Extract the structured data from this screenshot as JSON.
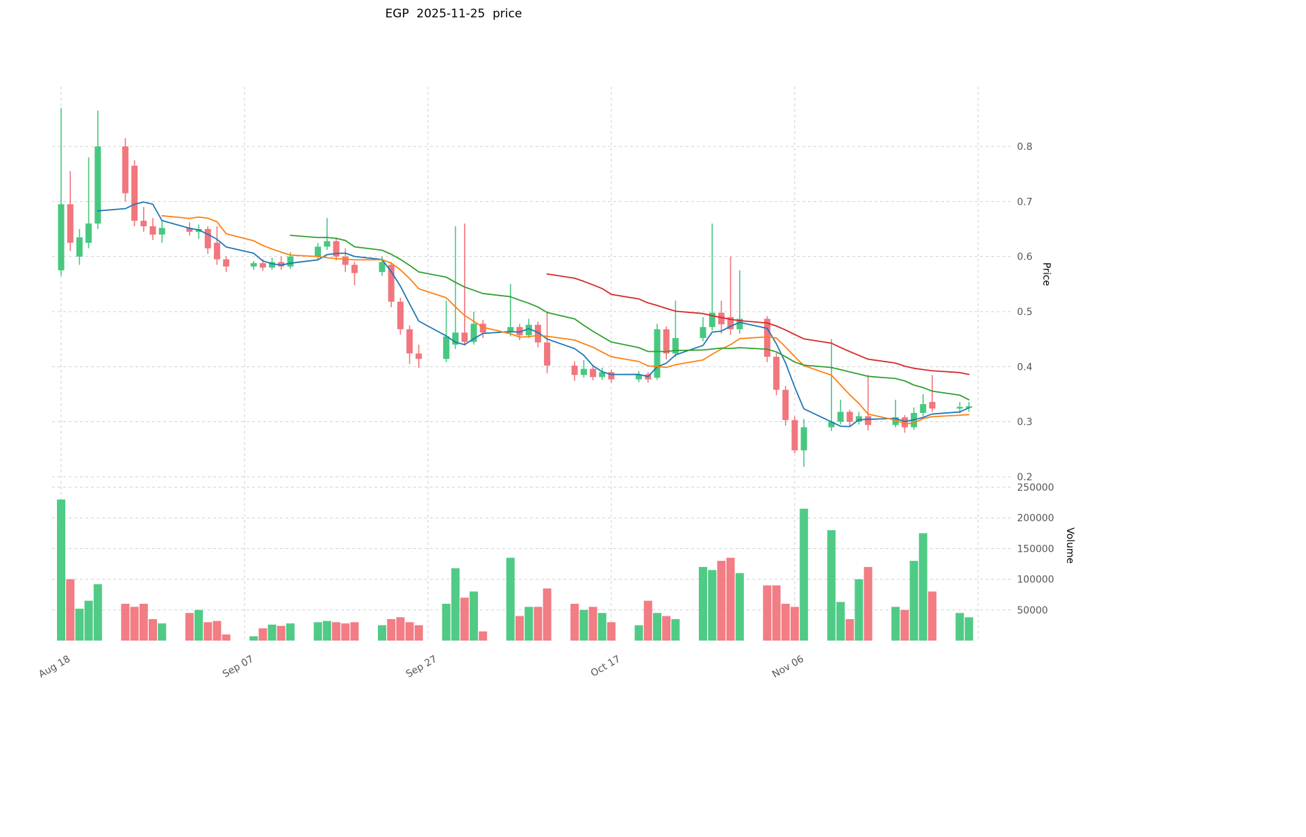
{
  "chart_data": {
    "type": "candlestick",
    "title": "EGP  2025-11-25  price",
    "price_axis_label": "Price",
    "volume_axis_label": "Volume",
    "legend_position": "none",
    "grid": "dashed",
    "price_ticks": [
      0.2,
      0.3,
      0.4,
      0.5,
      0.6,
      0.7,
      0.8
    ],
    "volume_ticks": [
      50000,
      100000,
      150000,
      200000,
      250000
    ],
    "price_ylim": [
      0.16,
      0.9
    ],
    "volume_ylim": [
      0,
      255000
    ],
    "x_ticks": [
      {
        "day": 0,
        "label": "Aug 18"
      },
      {
        "day": 20,
        "label": "Sep 07"
      },
      {
        "day": 40,
        "label": "Sep 27"
      },
      {
        "day": 60,
        "label": "Oct 17"
      },
      {
        "day": 80,
        "label": "Nov 06"
      },
      {
        "day": 100,
        "label": ""
      }
    ],
    "colors": {
      "up": "#47c87f",
      "down": "#f1767d",
      "ma5": "#1f77b4",
      "ma10": "#ff7f0e",
      "ma20": "#2ca02c",
      "ma40": "#d62728",
      "grid": "#cfcfcf",
      "tick_text": "#555555"
    },
    "moving_averages": [
      {
        "name": "MA5",
        "window": 5,
        "color_key": "ma5"
      },
      {
        "name": "MA10",
        "window": 10,
        "color_key": "ma10"
      },
      {
        "name": "MA20",
        "window": 20,
        "color_key": "ma20"
      },
      {
        "name": "MA40",
        "window": 40,
        "color_key": "ma40"
      }
    ],
    "bars_format": [
      "day_offset",
      "open",
      "high",
      "low",
      "close",
      "volume"
    ],
    "bars": [
      [
        0,
        0.575,
        0.87,
        0.565,
        0.695,
        230000
      ],
      [
        1,
        0.695,
        0.755,
        0.61,
        0.625,
        100000
      ],
      [
        2,
        0.6,
        0.65,
        0.585,
        0.635,
        52000
      ],
      [
        3,
        0.625,
        0.78,
        0.615,
        0.66,
        65000
      ],
      [
        4,
        0.66,
        0.865,
        0.65,
        0.8,
        92000
      ],
      [
        7,
        0.8,
        0.815,
        0.7,
        0.715,
        60000
      ],
      [
        8,
        0.765,
        0.775,
        0.655,
        0.665,
        55000
      ],
      [
        9,
        0.665,
        0.69,
        0.645,
        0.655,
        60000
      ],
      [
        10,
        0.655,
        0.67,
        0.63,
        0.64,
        35000
      ],
      [
        11,
        0.64,
        0.665,
        0.625,
        0.652,
        28000
      ],
      [
        14,
        0.652,
        0.662,
        0.638,
        0.645,
        45000
      ],
      [
        15,
        0.645,
        0.658,
        0.632,
        0.65,
        50000
      ],
      [
        16,
        0.65,
        0.655,
        0.605,
        0.615,
        30000
      ],
      [
        17,
        0.625,
        0.655,
        0.585,
        0.595,
        32000
      ],
      [
        18,
        0.595,
        0.6,
        0.572,
        0.582,
        10000
      ],
      [
        21,
        0.582,
        0.592,
        0.576,
        0.588,
        7000
      ],
      [
        22,
        0.588,
        0.595,
        0.574,
        0.58,
        20000
      ],
      [
        23,
        0.58,
        0.598,
        0.576,
        0.59,
        26000
      ],
      [
        24,
        0.59,
        0.6,
        0.576,
        0.582,
        24000
      ],
      [
        25,
        0.582,
        0.608,
        0.578,
        0.6,
        28000
      ],
      [
        28,
        0.6,
        0.625,
        0.595,
        0.618,
        30000
      ],
      [
        29,
        0.618,
        0.67,
        0.612,
        0.628,
        32000
      ],
      [
        30,
        0.628,
        0.635,
        0.593,
        0.6,
        30000
      ],
      [
        31,
        0.6,
        0.615,
        0.572,
        0.585,
        28000
      ],
      [
        32,
        0.585,
        0.59,
        0.548,
        0.57,
        30000
      ],
      [
        35,
        0.572,
        0.6,
        0.565,
        0.59,
        25000
      ],
      [
        36,
        0.585,
        0.59,
        0.508,
        0.518,
        35000
      ],
      [
        37,
        0.518,
        0.525,
        0.458,
        0.468,
        38000
      ],
      [
        38,
        0.468,
        0.475,
        0.405,
        0.424,
        30000
      ],
      [
        39,
        0.424,
        0.44,
        0.398,
        0.414,
        25000
      ],
      [
        42,
        0.414,
        0.52,
        0.408,
        0.455,
        60000
      ],
      [
        43,
        0.44,
        0.655,
        0.432,
        0.462,
        118000
      ],
      [
        44,
        0.462,
        0.66,
        0.438,
        0.445,
        70000
      ],
      [
        45,
        0.445,
        0.5,
        0.44,
        0.478,
        80000
      ],
      [
        46,
        0.478,
        0.485,
        0.452,
        0.462,
        15000
      ],
      [
        49,
        0.462,
        0.55,
        0.455,
        0.472,
        135000
      ],
      [
        50,
        0.472,
        0.478,
        0.448,
        0.457,
        40000
      ],
      [
        51,
        0.457,
        0.487,
        0.452,
        0.476,
        55000
      ],
      [
        52,
        0.476,
        0.482,
        0.435,
        0.444,
        55000
      ],
      [
        53,
        0.444,
        0.5,
        0.388,
        0.402,
        85000
      ],
      [
        56,
        0.402,
        0.41,
        0.374,
        0.385,
        60000
      ],
      [
        57,
        0.385,
        0.412,
        0.38,
        0.396,
        50000
      ],
      [
        58,
        0.396,
        0.402,
        0.375,
        0.381,
        55000
      ],
      [
        59,
        0.381,
        0.398,
        0.376,
        0.39,
        45000
      ],
      [
        60,
        0.39,
        0.395,
        0.371,
        0.377,
        30000
      ],
      [
        63,
        0.377,
        0.392,
        0.372,
        0.386,
        25000
      ],
      [
        64,
        0.386,
        0.39,
        0.371,
        0.377,
        65000
      ],
      [
        65,
        0.38,
        0.478,
        0.376,
        0.468,
        45000
      ],
      [
        66,
        0.468,
        0.473,
        0.413,
        0.424,
        40000
      ],
      [
        67,
        0.424,
        0.52,
        0.418,
        0.452,
        35000
      ],
      [
        70,
        0.452,
        0.49,
        0.446,
        0.472,
        120000
      ],
      [
        71,
        0.472,
        0.66,
        0.466,
        0.498,
        115000
      ],
      [
        72,
        0.498,
        0.52,
        0.46,
        0.477,
        130000
      ],
      [
        73,
        0.49,
        0.6,
        0.458,
        0.468,
        135000
      ],
      [
        74,
        0.468,
        0.575,
        0.46,
        0.487,
        110000
      ],
      [
        77,
        0.487,
        0.492,
        0.408,
        0.418,
        90000
      ],
      [
        78,
        0.418,
        0.425,
        0.348,
        0.358,
        90000
      ],
      [
        79,
        0.358,
        0.365,
        0.293,
        0.303,
        60000
      ],
      [
        80,
        0.303,
        0.31,
        0.243,
        0.248,
        55000
      ],
      [
        81,
        0.248,
        0.305,
        0.218,
        0.29,
        215000
      ],
      [
        84,
        0.29,
        0.45,
        0.283,
        0.3,
        180000
      ],
      [
        85,
        0.3,
        0.34,
        0.295,
        0.318,
        63000
      ],
      [
        86,
        0.318,
        0.322,
        0.292,
        0.3,
        35000
      ],
      [
        87,
        0.3,
        0.318,
        0.295,
        0.31,
        100000
      ],
      [
        88,
        0.31,
        0.385,
        0.284,
        0.294,
        120000
      ],
      [
        91,
        0.294,
        0.34,
        0.29,
        0.308,
        55000
      ],
      [
        92,
        0.308,
        0.312,
        0.28,
        0.29,
        50000
      ],
      [
        93,
        0.29,
        0.326,
        0.285,
        0.316,
        130000
      ],
      [
        94,
        0.316,
        0.35,
        0.31,
        0.332,
        175000
      ],
      [
        95,
        0.336,
        0.385,
        0.318,
        0.324,
        80000
      ],
      [
        98,
        0.324,
        0.336,
        0.315,
        0.327,
        45000
      ],
      [
        99,
        0.325,
        0.336,
        0.318,
        0.328,
        38000
      ]
    ]
  }
}
